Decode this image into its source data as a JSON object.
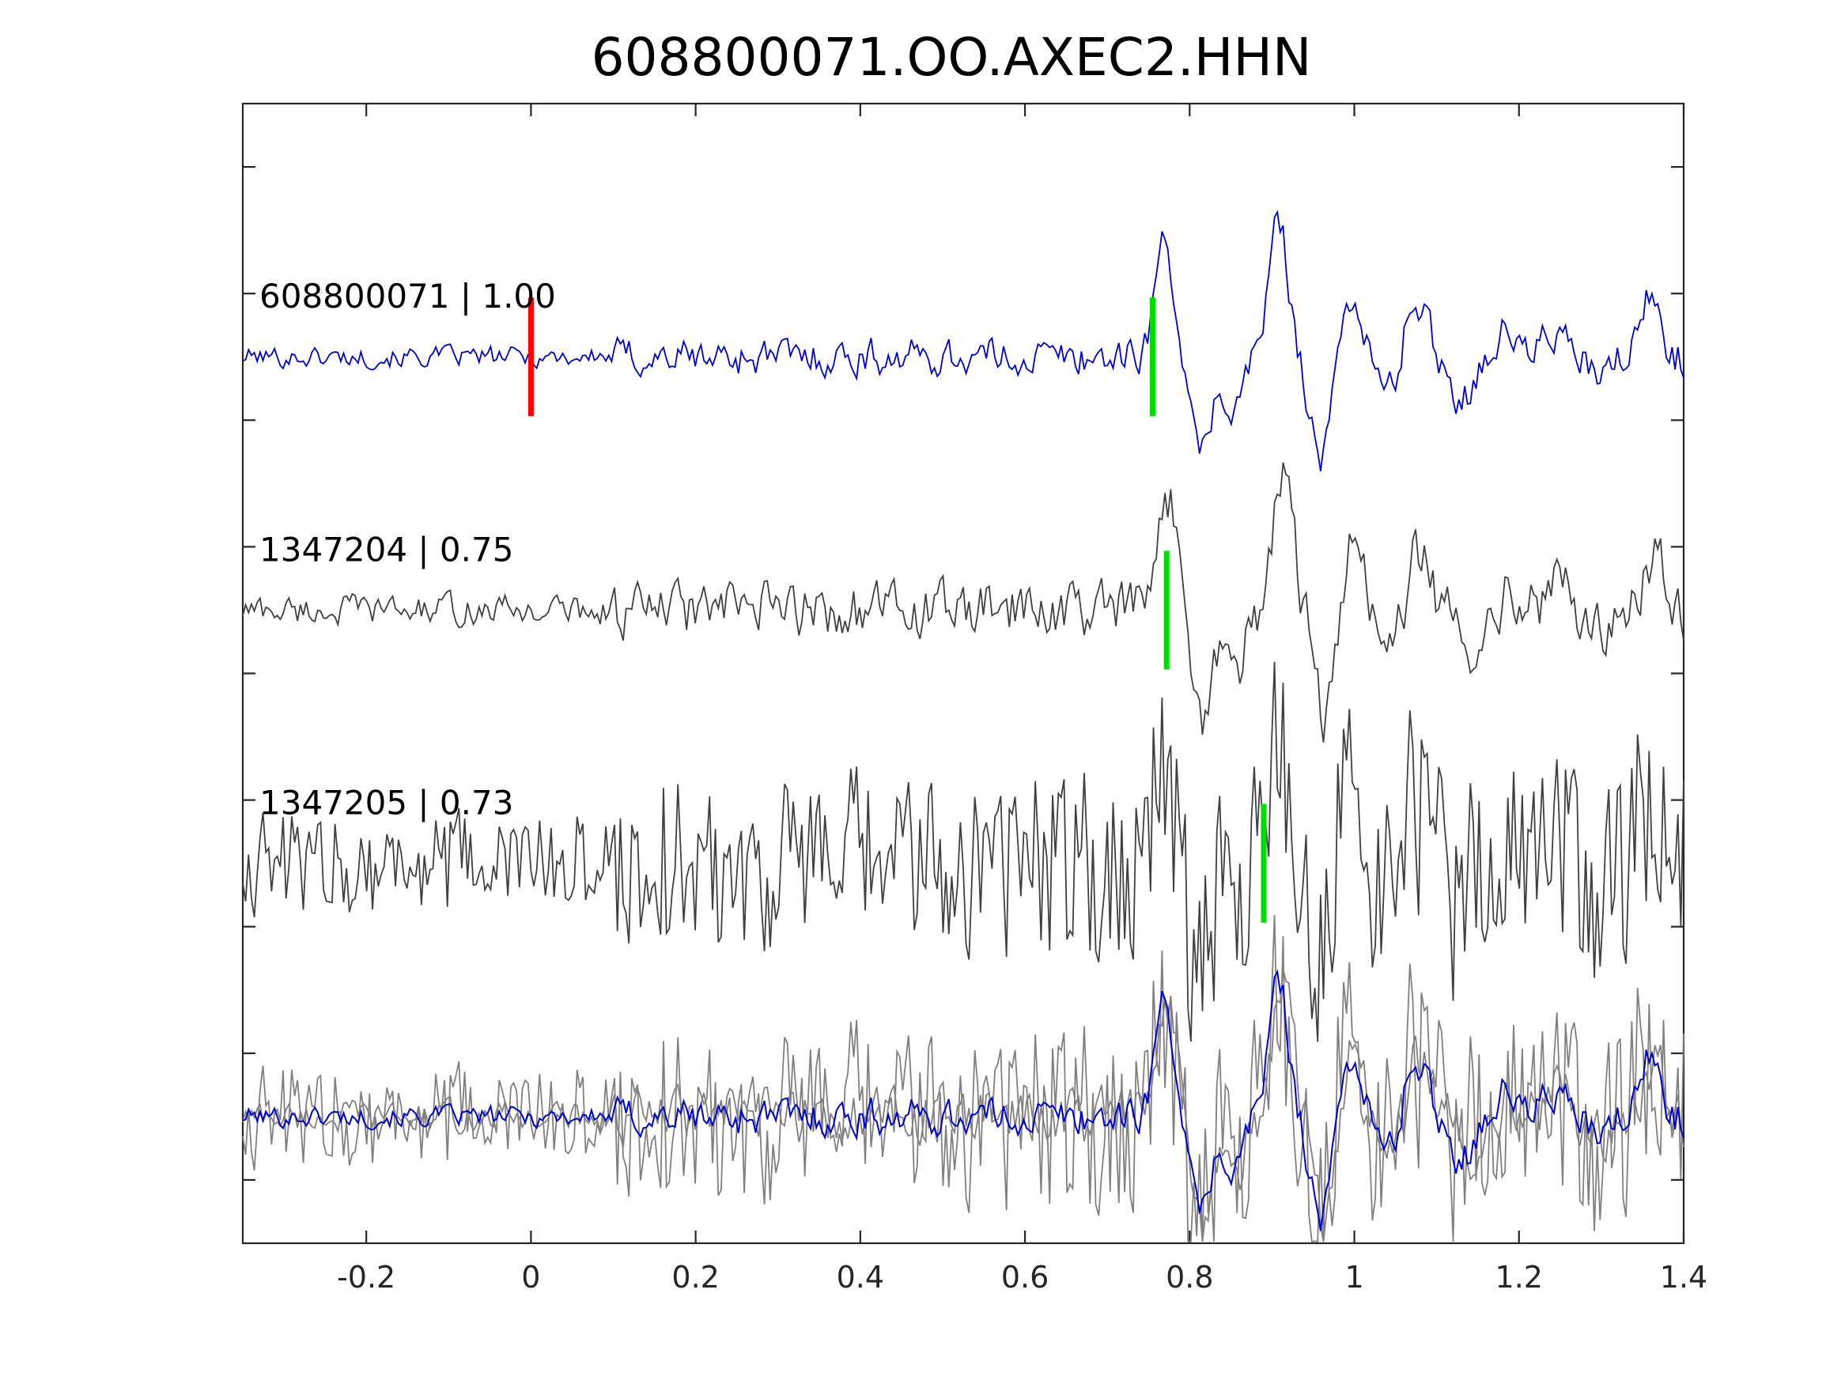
{
  "chart_data": {
    "type": "line",
    "title": "608800071.OO.AXEC2.HHN",
    "xlabel": "",
    "ylabel": "",
    "xlim": [
      -0.35,
      1.4
    ],
    "x_ticks": [
      -0.2,
      0,
      0.2,
      0.4,
      0.6,
      0.8,
      1,
      1.2,
      1.4
    ],
    "x_tick_labels": [
      "-0.2",
      "0",
      "0.2",
      "0.4",
      "0.6",
      "0.8",
      "1",
      "1.2",
      "1.4"
    ],
    "y_ticks_count": 9,
    "y_tick_labels_shown": false,
    "grid": false,
    "colors": {
      "template": "#0000cc",
      "neighbor": "#404040",
      "overlay_gray": "#808080",
      "pick_red": "#ff0000",
      "pick_green": "#00dd00"
    },
    "origin_pick": {
      "x": 0.0,
      "trace": 0
    },
    "series": [
      {
        "name": "608800071 | 1.00",
        "id": "608800071",
        "cc": 1.0,
        "pick": 0.755,
        "noise": 0.15
      },
      {
        "name": "1347204 | 0.75",
        "id": "1347204",
        "cc": 0.75,
        "pick": 0.772,
        "noise": 0.22
      },
      {
        "name": "1347205 | 0.73",
        "id": "1347205",
        "cc": 0.73,
        "pick": 0.89,
        "noise": 0.55
      }
    ],
    "stack": {
      "traces": [
        "608800071",
        "1347204",
        "1347205"
      ]
    },
    "waveform": {
      "pre_event_t": [
        -0.35,
        0.76
      ],
      "phases": [
        {
          "t": 0.77,
          "a": 0.95
        },
        {
          "t": 0.812,
          "a": -0.85
        },
        {
          "t": 0.852,
          "a": -0.45
        },
        {
          "t": 0.908,
          "a": 1.1
        },
        {
          "t": 0.96,
          "a": -0.9
        },
        {
          "t": 0.995,
          "a": 0.55
        },
        {
          "t": 1.04,
          "a": -0.3
        },
        {
          "t": 1.075,
          "a": 0.5
        },
        {
          "t": 1.13,
          "a": -0.35
        },
        {
          "t": 1.185,
          "a": 0.2
        },
        {
          "t": 1.24,
          "a": 0.22
        },
        {
          "t": 1.3,
          "a": -0.2
        },
        {
          "t": 1.36,
          "a": 0.5
        }
      ]
    }
  }
}
